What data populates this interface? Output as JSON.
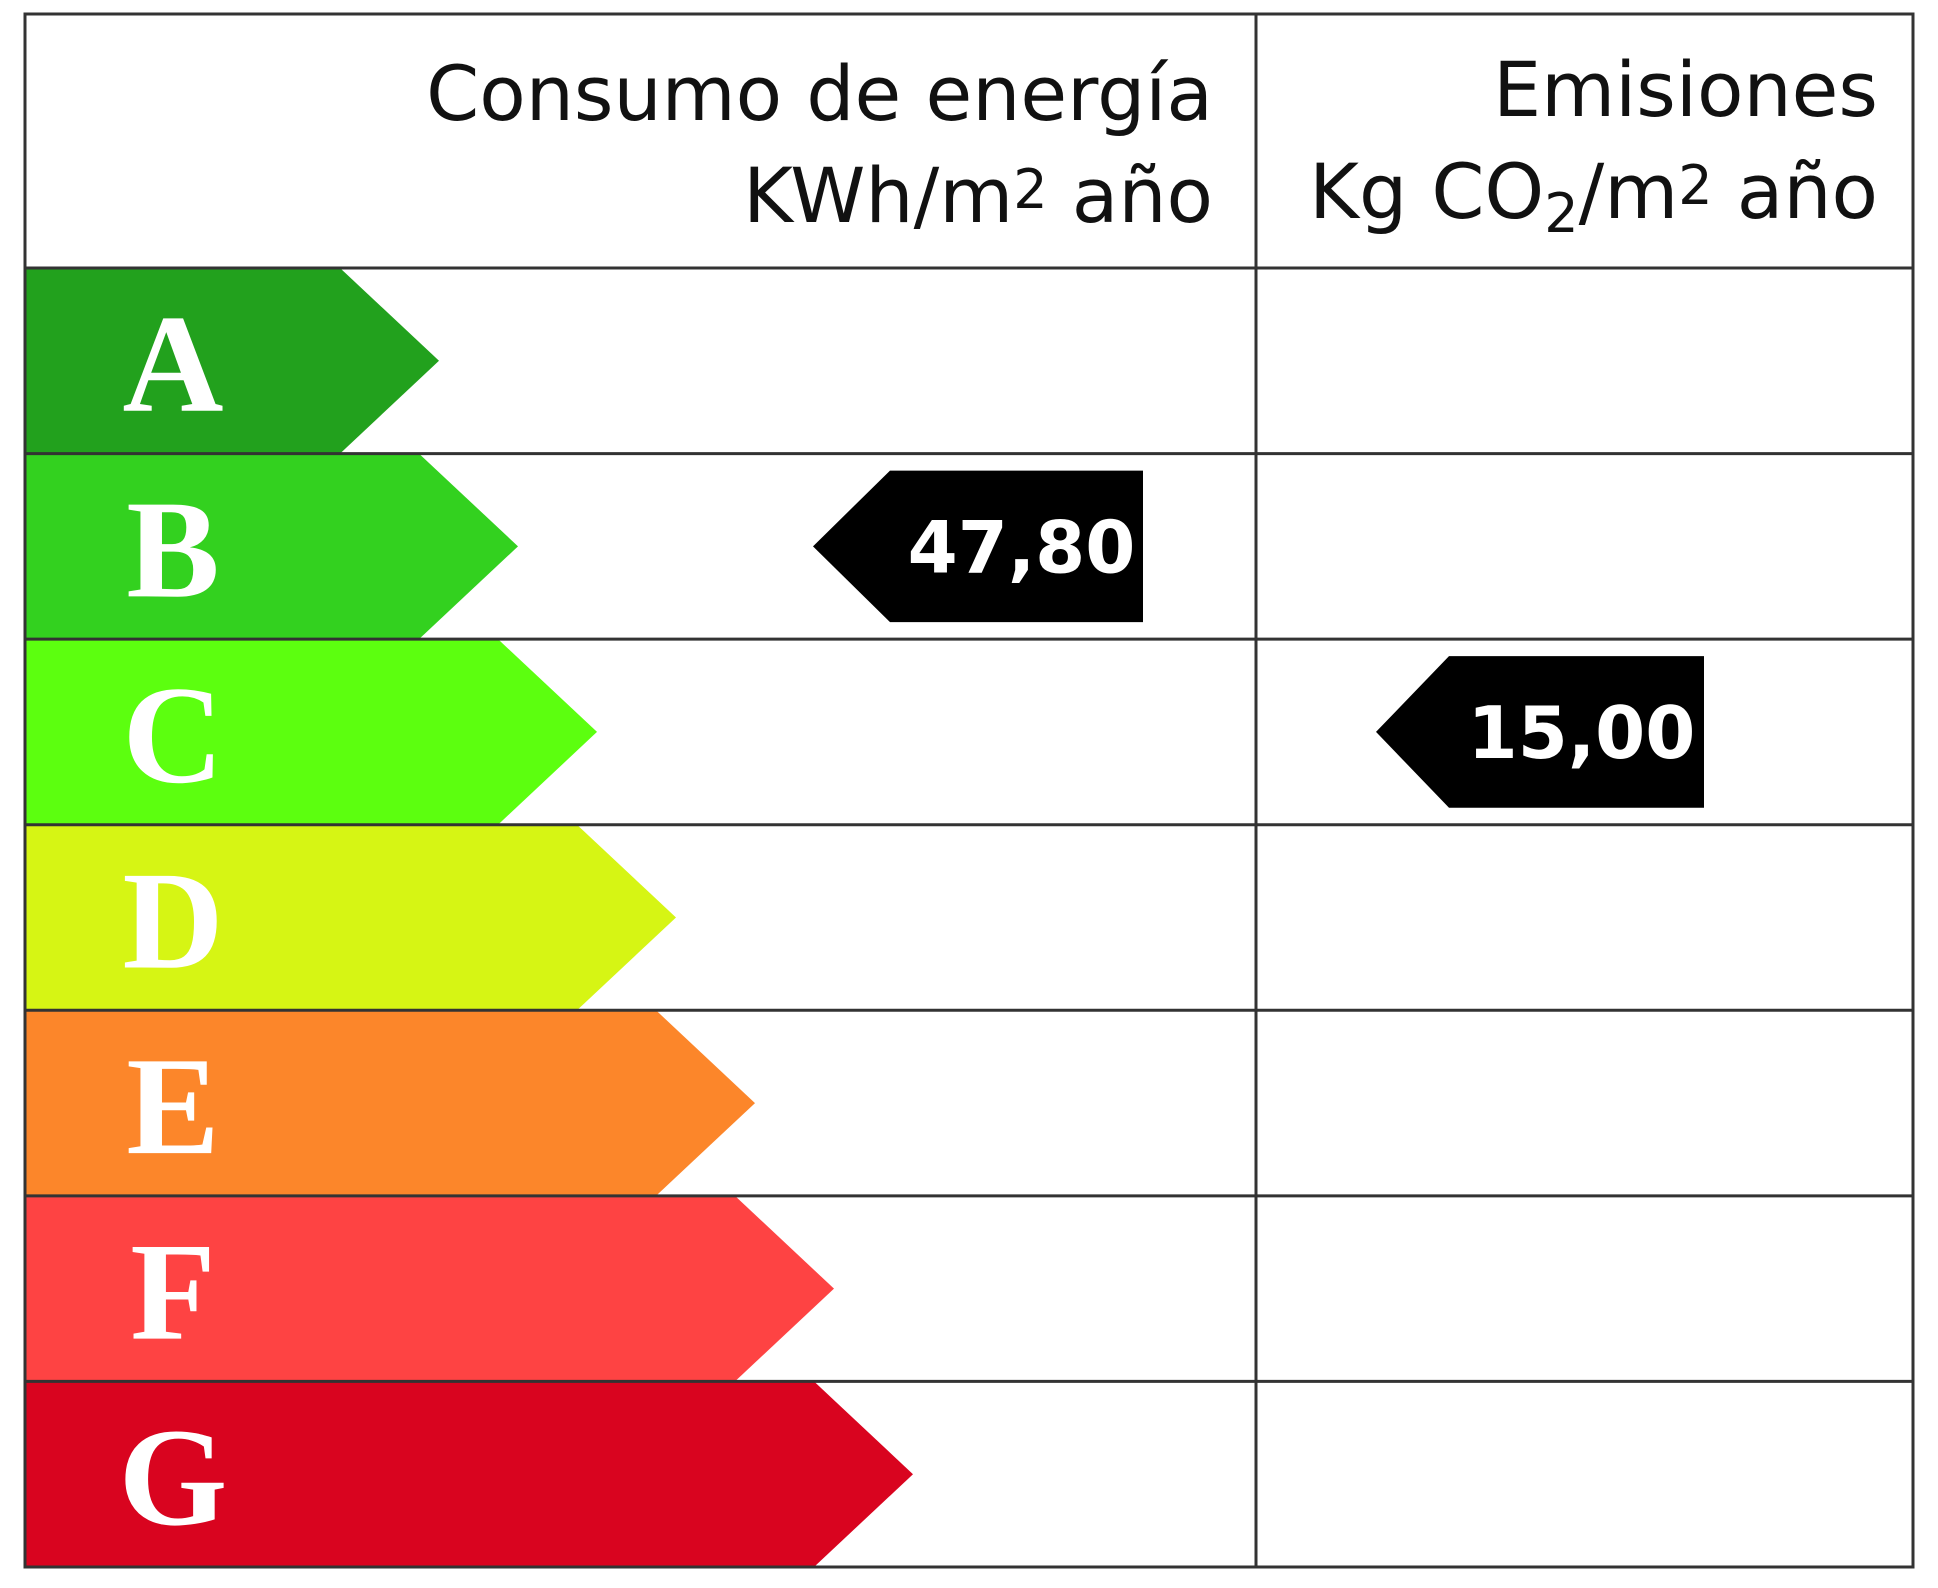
{
  "header": {
    "energy": {
      "title": "Consumo de energía",
      "unit": [
        "KWh/m",
        "2",
        " año"
      ]
    },
    "emissions": {
      "title": "Emisiones",
      "unit": [
        "Kg CO",
        "2",
        "/m",
        "2",
        " año"
      ]
    }
  },
  "ratings": [
    {
      "letter": "A",
      "color": "#22a11d"
    },
    {
      "letter": "B",
      "color": "#33d11f"
    },
    {
      "letter": "C",
      "color": "#5cff0f"
    },
    {
      "letter": "D",
      "color": "#d6f514"
    },
    {
      "letter": "E",
      "color": "#fc862a"
    },
    {
      "letter": "F",
      "color": "#fe4343"
    },
    {
      "letter": "G",
      "color": "#d9041f"
    }
  ],
  "energy": {
    "value": "47,80",
    "rating": "B"
  },
  "emissions": {
    "value": "15,00",
    "rating": "C"
  }
}
